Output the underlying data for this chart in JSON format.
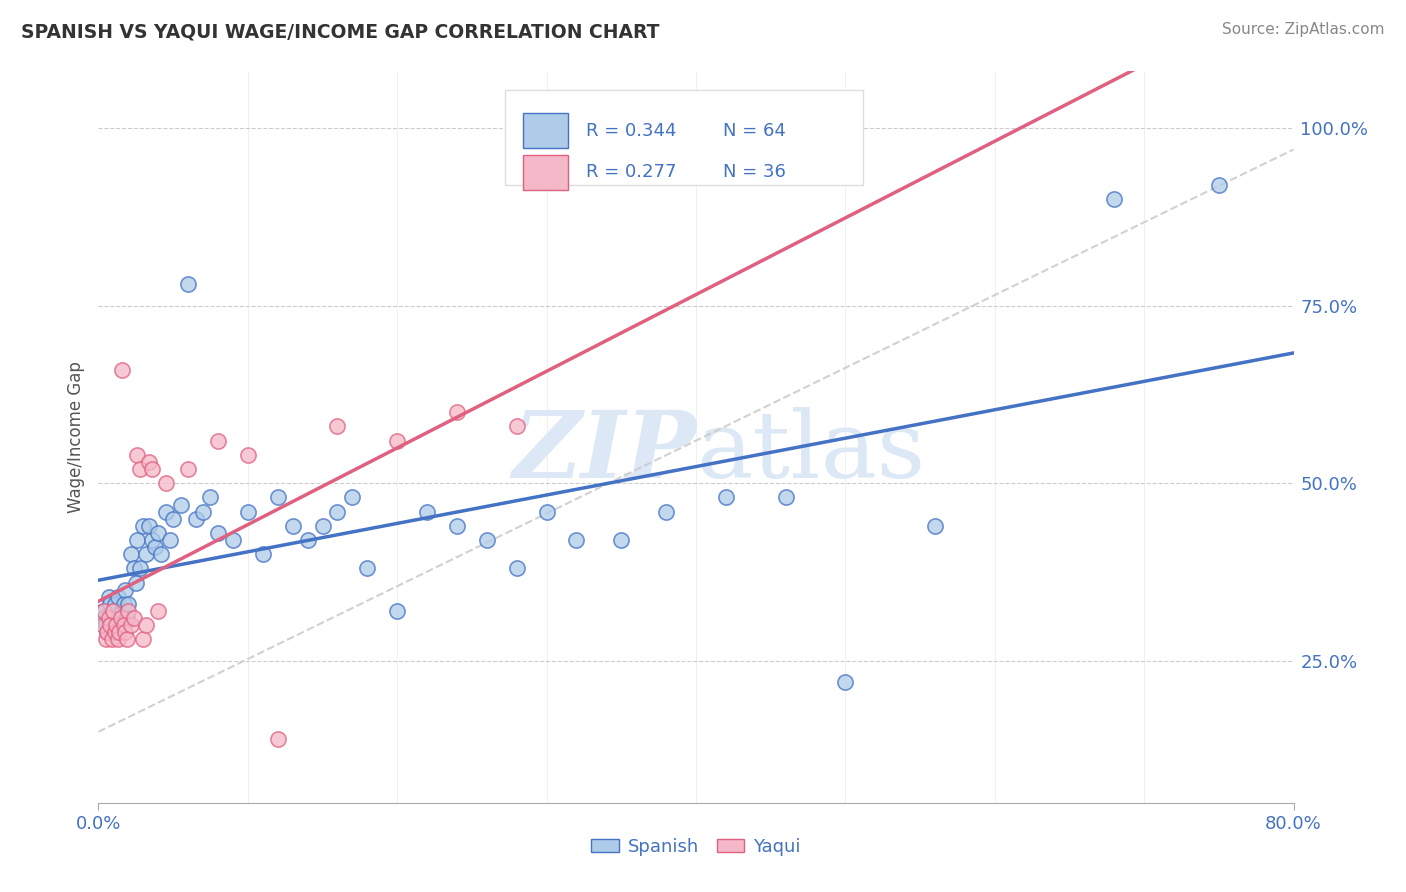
{
  "title": "SPANISH VS YAQUI WAGE/INCOME GAP CORRELATION CHART",
  "source": "Source: ZipAtlas.com",
  "ylabel": "Wage/Income Gap",
  "y_ticks": [
    0.25,
    0.5,
    0.75,
    1.0
  ],
  "y_tick_labels": [
    "25.0%",
    "50.0%",
    "75.0%",
    "100.0%"
  ],
  "xlim": [
    0.0,
    0.8
  ],
  "ylim": [
    0.05,
    1.08
  ],
  "spanish_R": 0.344,
  "spanish_N": 64,
  "yaqui_R": 0.277,
  "yaqui_N": 36,
  "spanish_color": "#aecce8",
  "yaqui_color": "#f5b8c8",
  "spanish_line_color": "#4472c4",
  "yaqui_line_color": "#e06080",
  "dashed_line_color": "#cccccc",
  "title_color": "#333333",
  "source_color": "#888888",
  "axis_label_color": "#4472c4",
  "background_color": "#ffffff",
  "plot_bg_color": "#ffffff",
  "watermark_color": "#dce8f5",
  "spanish_x": [
    0.003,
    0.004,
    0.005,
    0.006,
    0.007,
    0.008,
    0.009,
    0.01,
    0.011,
    0.012,
    0.013,
    0.014,
    0.015,
    0.016,
    0.017,
    0.018,
    0.019,
    0.02,
    0.022,
    0.024,
    0.025,
    0.026,
    0.028,
    0.03,
    0.032,
    0.034,
    0.036,
    0.038,
    0.04,
    0.042,
    0.045,
    0.048,
    0.05,
    0.055,
    0.06,
    0.065,
    0.07,
    0.075,
    0.08,
    0.09,
    0.1,
    0.11,
    0.12,
    0.13,
    0.14,
    0.15,
    0.16,
    0.17,
    0.18,
    0.2,
    0.22,
    0.24,
    0.26,
    0.28,
    0.3,
    0.32,
    0.35,
    0.38,
    0.42,
    0.46,
    0.5,
    0.56,
    0.68,
    0.75
  ],
  "spanish_y": [
    0.32,
    0.31,
    0.3,
    0.29,
    0.34,
    0.33,
    0.31,
    0.32,
    0.33,
    0.3,
    0.34,
    0.31,
    0.3,
    0.32,
    0.33,
    0.35,
    0.31,
    0.33,
    0.4,
    0.38,
    0.36,
    0.42,
    0.38,
    0.44,
    0.4,
    0.44,
    0.42,
    0.41,
    0.43,
    0.4,
    0.46,
    0.42,
    0.45,
    0.47,
    0.78,
    0.45,
    0.46,
    0.48,
    0.43,
    0.42,
    0.46,
    0.4,
    0.48,
    0.44,
    0.42,
    0.44,
    0.46,
    0.48,
    0.38,
    0.32,
    0.46,
    0.44,
    0.42,
    0.38,
    0.46,
    0.42,
    0.42,
    0.46,
    0.48,
    0.48,
    0.22,
    0.44,
    0.9,
    0.92
  ],
  "yaqui_x": [
    0.003,
    0.004,
    0.005,
    0.006,
    0.007,
    0.008,
    0.009,
    0.01,
    0.011,
    0.012,
    0.013,
    0.014,
    0.015,
    0.016,
    0.017,
    0.018,
    0.019,
    0.02,
    0.022,
    0.024,
    0.026,
    0.028,
    0.03,
    0.032,
    0.034,
    0.036,
    0.04,
    0.045,
    0.06,
    0.08,
    0.1,
    0.12,
    0.16,
    0.2,
    0.24,
    0.28
  ],
  "yaqui_y": [
    0.3,
    0.32,
    0.28,
    0.29,
    0.31,
    0.3,
    0.28,
    0.32,
    0.29,
    0.3,
    0.28,
    0.29,
    0.31,
    0.66,
    0.3,
    0.29,
    0.28,
    0.32,
    0.3,
    0.31,
    0.54,
    0.52,
    0.28,
    0.3,
    0.53,
    0.52,
    0.32,
    0.5,
    0.52,
    0.56,
    0.54,
    0.14,
    0.58,
    0.56,
    0.6,
    0.58
  ]
}
